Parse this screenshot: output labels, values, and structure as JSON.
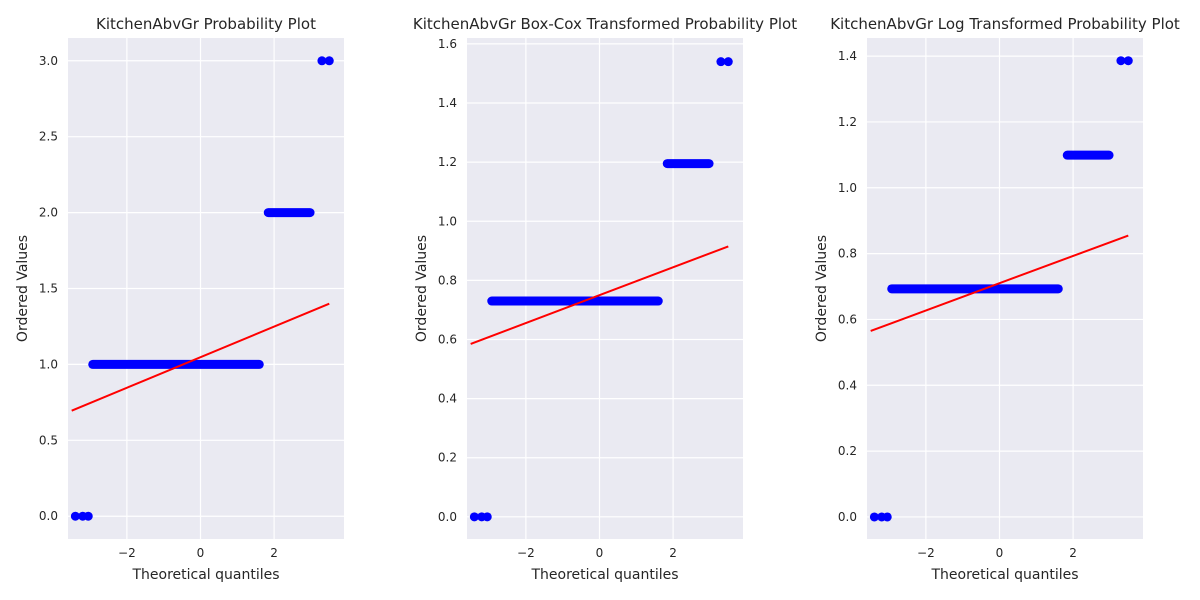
{
  "chart_data": [
    {
      "type": "scatter",
      "title": "KitchenAbvGr Probability Plot",
      "xlabel": "Theoretical quantiles",
      "ylabel": "Ordered Values",
      "xlim": [
        -3.6,
        3.9
      ],
      "ylim": [
        -0.15,
        3.15
      ],
      "xticks": [
        -2,
        0,
        2
      ],
      "xtick_labels": [
        "−2",
        "0",
        "2"
      ],
      "yticks": [
        0.0,
        0.5,
        1.0,
        1.5,
        2.0,
        2.5,
        3.0
      ],
      "ytick_labels": [
        "0.0",
        "0.5",
        "1.0",
        "1.5",
        "2.0",
        "2.5",
        "3.0"
      ],
      "grid": true,
      "points": [
        {
          "x": -3.4,
          "y": 0.0
        },
        {
          "x": -3.2,
          "y": 0.0
        },
        {
          "x": -3.05,
          "y": 0.0
        },
        {
          "x": 3.3,
          "y": 3.0
        },
        {
          "x": 3.5,
          "y": 3.0
        }
      ],
      "dense_segments": [
        {
          "x_start": -3.05,
          "x_end": 1.72,
          "y": 1.0
        },
        {
          "x_start": 1.72,
          "x_end": 3.1,
          "y": 2.0
        }
      ],
      "fit_line": {
        "x": [
          -3.5,
          3.5
        ],
        "y": [
          0.695,
          1.4
        ]
      },
      "colors": {
        "points": "#0000FF",
        "fit": "#FF0000"
      }
    },
    {
      "type": "scatter",
      "title": "KitchenAbvGr Box-Cox Transformed Probability Plot",
      "xlabel": "Theoretical quantiles",
      "ylabel": "Ordered Values",
      "xlim": [
        -3.6,
        3.9
      ],
      "ylim": [
        -0.075,
        1.62
      ],
      "xticks": [
        -2,
        0,
        2
      ],
      "xtick_labels": [
        "−2",
        "0",
        "2"
      ],
      "yticks": [
        0.0,
        0.2,
        0.4,
        0.6,
        0.8,
        1.0,
        1.2,
        1.4,
        1.6
      ],
      "ytick_labels": [
        "0.0",
        "0.2",
        "0.4",
        "0.6",
        "0.8",
        "1.0",
        "1.2",
        "1.4",
        "1.6"
      ],
      "grid": true,
      "points": [
        {
          "x": -3.4,
          "y": 0.0
        },
        {
          "x": -3.2,
          "y": 0.0
        },
        {
          "x": -3.05,
          "y": 0.0
        },
        {
          "x": 3.3,
          "y": 1.54
        },
        {
          "x": 3.5,
          "y": 1.54
        }
      ],
      "dense_segments": [
        {
          "x_start": -3.05,
          "x_end": 1.72,
          "y": 0.73
        },
        {
          "x_start": 1.72,
          "x_end": 3.1,
          "y": 1.195
        }
      ],
      "fit_line": {
        "x": [
          -3.5,
          3.5
        ],
        "y": [
          0.585,
          0.915
        ]
      },
      "colors": {
        "points": "#0000FF",
        "fit": "#FF0000"
      }
    },
    {
      "type": "scatter",
      "title": "KitchenAbvGr Log Transformed Probability Plot",
      "xlabel": "Theoretical quantiles",
      "ylabel": "Ordered Values",
      "xlim": [
        -3.6,
        3.9
      ],
      "ylim": [
        -0.067,
        1.455
      ],
      "xticks": [
        -2,
        0,
        2
      ],
      "xtick_labels": [
        "−2",
        "0",
        "2"
      ],
      "yticks": [
        0.0,
        0.2,
        0.4,
        0.6,
        0.8,
        1.0,
        1.2,
        1.4
      ],
      "ytick_labels": [
        "0.0",
        "0.2",
        "0.4",
        "0.6",
        "0.8",
        "1.0",
        "1.2",
        "1.4"
      ],
      "grid": true,
      "points": [
        {
          "x": -3.4,
          "y": 0.0
        },
        {
          "x": -3.2,
          "y": 0.0
        },
        {
          "x": -3.05,
          "y": 0.0
        },
        {
          "x": 3.3,
          "y": 1.386
        },
        {
          "x": 3.5,
          "y": 1.386
        }
      ],
      "dense_segments": [
        {
          "x_start": -3.05,
          "x_end": 1.72,
          "y": 0.693
        },
        {
          "x_start": 1.72,
          "x_end": 3.1,
          "y": 1.099
        }
      ],
      "fit_line": {
        "x": [
          -3.5,
          3.5
        ],
        "y": [
          0.565,
          0.855
        ]
      },
      "colors": {
        "points": "#0000FF",
        "fit": "#FF0000"
      }
    }
  ]
}
